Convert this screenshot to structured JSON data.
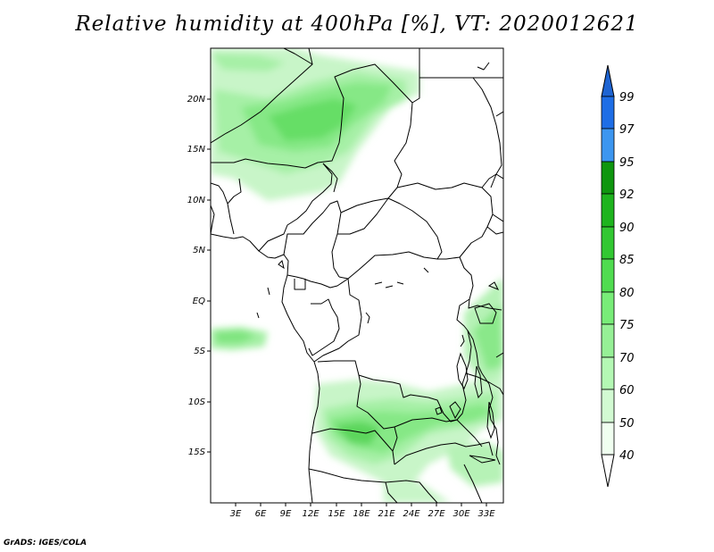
{
  "title": "Relative humidity at 400hPa [%], VT: 2020012621",
  "footer": "GrADS: IGES/COLA",
  "map": {
    "lon_range": [
      0,
      35
    ],
    "lat_range": [
      -20,
      25
    ],
    "lat_ticks": [
      "20N",
      "15N",
      "10N",
      "5N",
      "EQ",
      "5S",
      "10S",
      "15S"
    ],
    "lon_ticks": [
      "3E",
      "6E",
      "9E",
      "12E",
      "15E",
      "18E",
      "21E",
      "24E",
      "27E",
      "30E",
      "33E"
    ]
  },
  "colorbar": {
    "levels": [
      "99",
      "97",
      "95",
      "92",
      "90",
      "85",
      "80",
      "75",
      "70",
      "60",
      "50",
      "40"
    ],
    "colors": [
      "#1e64d2",
      "#1e6ee6",
      "#3c96f0",
      "#0f960f",
      "#1eb41e",
      "#32c832",
      "#50dc50",
      "#78ec78",
      "#96f096",
      "#b4f8b4",
      "#d2fad2",
      "#f0fff0"
    ]
  }
}
